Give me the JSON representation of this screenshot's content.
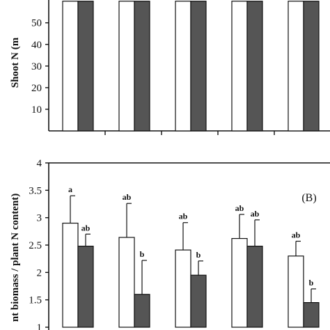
{
  "chart_data": [
    {
      "panel": "A",
      "type": "bar",
      "ylabel": "Shoot N (m",
      "yticks": [
        10,
        20,
        30,
        40,
        50
      ],
      "ylim": [
        0,
        57
      ],
      "groups": 5,
      "series": [
        {
          "color": "#ffffff",
          "values": [
            60,
            60,
            60,
            60,
            60
          ]
        },
        {
          "color": "#555555",
          "values": [
            60,
            60,
            60,
            60,
            60
          ]
        }
      ]
    },
    {
      "panel": "B",
      "panel_label": "(B)",
      "type": "bar",
      "ylabel": "nt biomass / plant N content)",
      "yticks": [
        "1",
        "1.5",
        "2",
        "2.5",
        "3",
        "3.5",
        "4"
      ],
      "ytick_values": [
        1,
        1.5,
        2,
        2.5,
        3,
        3.5,
        4
      ],
      "ylim": [
        1,
        4
      ],
      "groups": 5,
      "series": [
        {
          "color": "#ffffff",
          "values": [
            2.9,
            2.64,
            2.41,
            2.62,
            2.3
          ],
          "errors": [
            0.5,
            0.62,
            0.5,
            0.44,
            0.27
          ],
          "labels": [
            "a",
            "ab",
            "ab",
            "ab",
            "ab"
          ]
        },
        {
          "color": "#555555",
          "values": [
            2.48,
            1.6,
            1.95,
            2.48,
            1.45
          ],
          "errors": [
            0.22,
            0.62,
            0.26,
            0.48,
            0.25
          ],
          "labels": [
            "ab",
            "b",
            "b",
            "ab",
            "b"
          ]
        }
      ]
    }
  ]
}
